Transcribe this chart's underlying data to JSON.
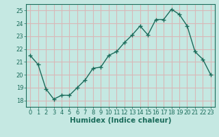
{
  "x": [
    0,
    1,
    2,
    3,
    4,
    5,
    6,
    7,
    8,
    9,
    10,
    11,
    12,
    13,
    14,
    15,
    16,
    17,
    18,
    19,
    20,
    21,
    22,
    23
  ],
  "y": [
    21.5,
    20.8,
    18.9,
    18.1,
    18.4,
    18.4,
    19.0,
    19.6,
    20.5,
    20.6,
    21.5,
    21.8,
    22.5,
    23.1,
    23.8,
    23.1,
    24.3,
    24.3,
    25.1,
    24.7,
    23.8,
    21.8,
    21.2,
    20.0
  ],
  "line_color": "#1a6b5a",
  "marker": "+",
  "marker_size": 4,
  "bg_color": "#c5e8e2",
  "grid_color": "#d8b8b8",
  "xlabel": "Humidex (Indice chaleur)",
  "xlim": [
    -0.5,
    23.5
  ],
  "ylim": [
    17.5,
    25.5
  ],
  "yticks": [
    18,
    19,
    20,
    21,
    22,
    23,
    24,
    25
  ],
  "xticks": [
    0,
    1,
    2,
    3,
    4,
    5,
    6,
    7,
    8,
    9,
    10,
    11,
    12,
    13,
    14,
    15,
    16,
    17,
    18,
    19,
    20,
    21,
    22,
    23
  ],
  "tick_color": "#1a6b5a",
  "axis_color": "#1a6b5a",
  "label_fontsize": 7.5,
  "tick_fontsize": 6
}
